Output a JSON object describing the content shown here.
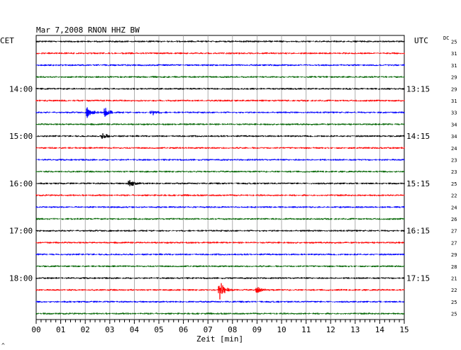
{
  "header": {
    "title": "Mar 7,2008   RNON HHZ BW"
  },
  "left_label": "CET",
  "right_label": "UTC",
  "dc_label": "DC",
  "corner_mark": "^",
  "chart_data": {
    "type": "line",
    "title": "Mar 7,2008   RNON HHZ BW",
    "xlabel": "Zeit [min]",
    "ylabel": "",
    "xlim": [
      0,
      15
    ],
    "x_ticks": [
      "00",
      "01",
      "02",
      "03",
      "04",
      "05",
      "06",
      "07",
      "08",
      "09",
      "10",
      "11",
      "12",
      "13",
      "14",
      "15"
    ],
    "trace_minutes": 15,
    "trace_colors": [
      "#000000",
      "#ff0000",
      "#0000ff",
      "#006400"
    ],
    "left_time_labels": [
      {
        "row": 4,
        "text": "14:00"
      },
      {
        "row": 8,
        "text": "15:00"
      },
      {
        "row": 12,
        "text": "16:00"
      },
      {
        "row": 16,
        "text": "17:00"
      },
      {
        "row": 20,
        "text": "18:00"
      }
    ],
    "right_time_labels": [
      {
        "row": 4,
        "text": "13:15"
      },
      {
        "row": 8,
        "text": "14:15"
      },
      {
        "row": 12,
        "text": "15:15"
      },
      {
        "row": 16,
        "text": "16:15"
      },
      {
        "row": 20,
        "text": "17:15"
      }
    ],
    "dc_offsets": [
      "25",
      "31",
      "31",
      "29",
      "29",
      "31",
      "33",
      "34",
      "34",
      "24",
      "23",
      "23",
      "25",
      "22",
      "24",
      "26",
      "27",
      "27",
      "29",
      "28",
      "21",
      "22",
      "25",
      "25"
    ],
    "events": [
      {
        "row": 6,
        "minute": 2.1,
        "amplitude": 2.2
      },
      {
        "row": 6,
        "minute": 2.8,
        "amplitude": 2.0
      },
      {
        "row": 6,
        "minute": 4.7,
        "amplitude": 1.5
      },
      {
        "row": 8,
        "minute": 2.7,
        "amplitude": 1.3
      },
      {
        "row": 12,
        "minute": 3.8,
        "amplitude": 1.6
      },
      {
        "row": 21,
        "minute": 7.45,
        "amplitude": 5.0
      },
      {
        "row": 21,
        "minute": 9.0,
        "amplitude": 1.3
      }
    ]
  }
}
